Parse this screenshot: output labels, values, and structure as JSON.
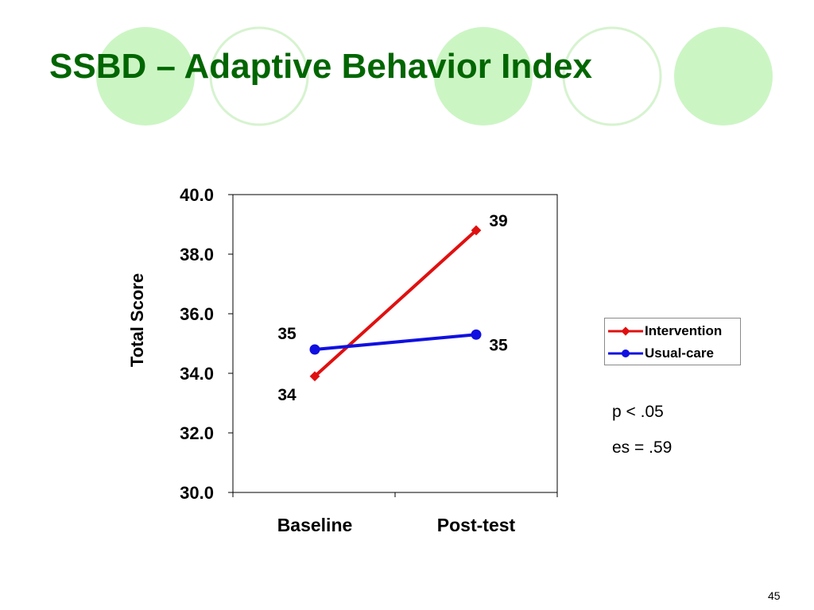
{
  "slide": {
    "title": "SSBD – Adaptive Behavior Index",
    "page_number": "45",
    "stats": [
      "p < .05",
      "es = .59"
    ],
    "colors": {
      "title": "#006600",
      "circle_fill": "#ccf5c4",
      "circle_outline": "#d6f3cf"
    }
  },
  "chart_data": {
    "type": "line",
    "categories": [
      "Baseline",
      "Post-test"
    ],
    "series": [
      {
        "name": "Intervention",
        "values": [
          33.9,
          38.8
        ],
        "labels": [
          "34",
          "39"
        ],
        "color": "#e01010",
        "marker": "diamond"
      },
      {
        "name": "Usual-care",
        "values": [
          34.8,
          35.3
        ],
        "labels": [
          "35",
          "35"
        ],
        "color": "#1010e0",
        "marker": "circle"
      }
    ],
    "ylabel": "Total Score",
    "ylim": [
      30,
      40
    ],
    "yticks": [
      "30.0",
      "32.0",
      "34.0",
      "36.0",
      "38.0",
      "40.0"
    ],
    "legend_position": "right"
  }
}
